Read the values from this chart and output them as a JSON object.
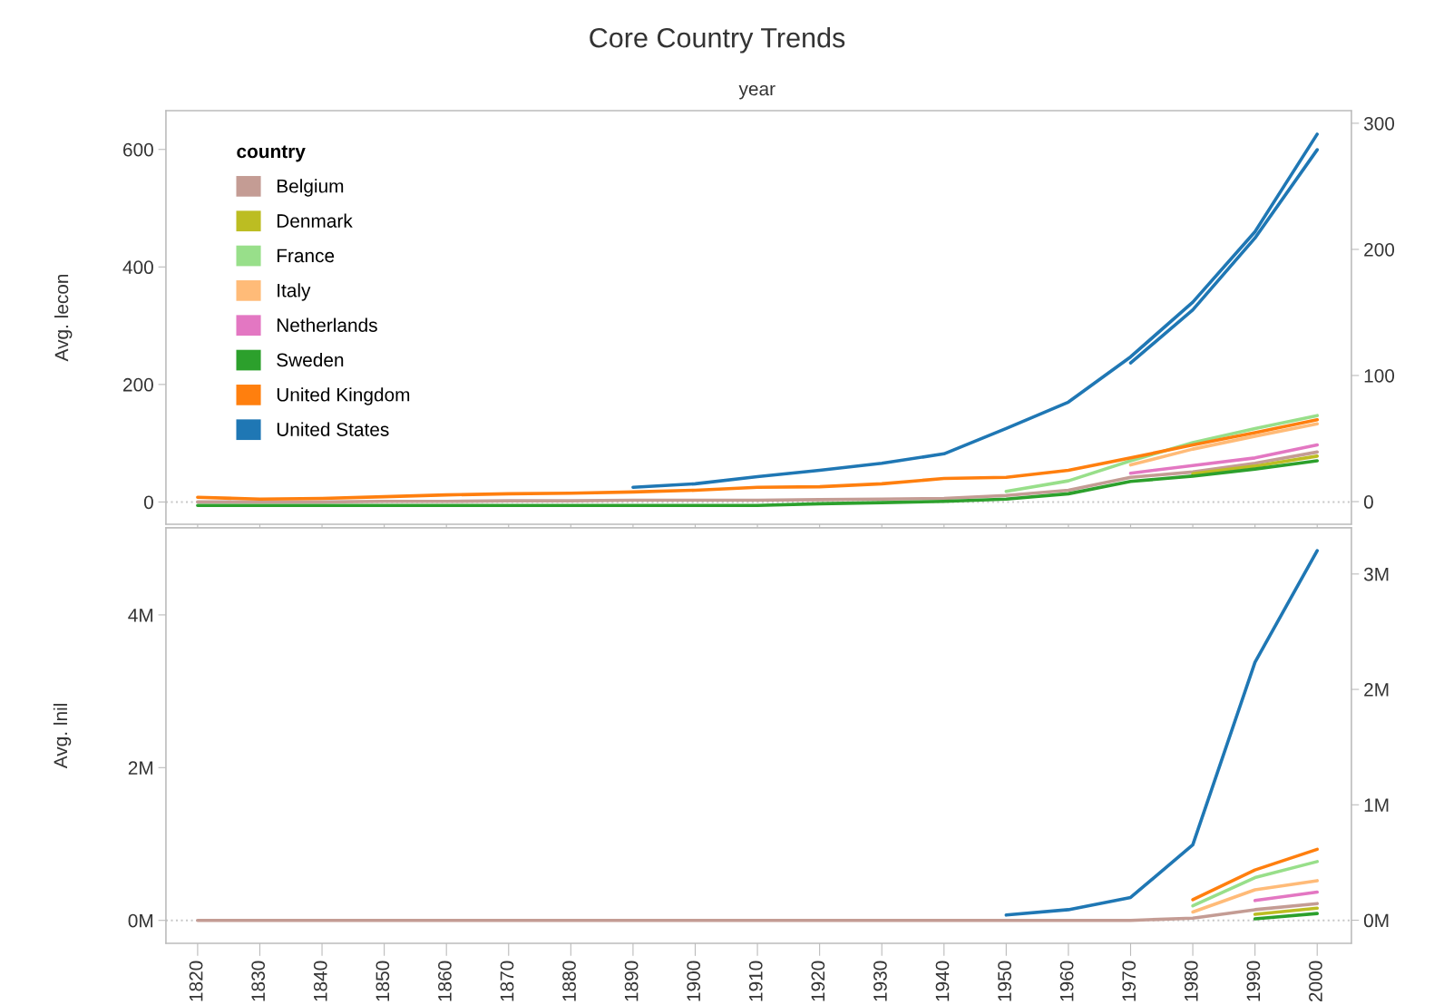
{
  "chart_data": [
    {
      "type": "line",
      "title": "Core Country Trends",
      "xlabel": "year",
      "ylabel": "Avg. lecon",
      "legend_title": "country",
      "legend": "top left",
      "tick_labels": "y",
      "grid": false,
      "categories": [
        "1820",
        "1830",
        "1840",
        "1850",
        "1860",
        "1870",
        "1880",
        "1890",
        "1900",
        "1910",
        "1920",
        "1930",
        "1940",
        "1950",
        "1960",
        "1970",
        "1980",
        "1990",
        "2000"
      ],
      "ylim": [
        -38,
        666
      ],
      "yticks": [
        0,
        200,
        400,
        600
      ],
      "y2lim": [
        -18,
        310
      ],
      "y2ticks": [
        0,
        100,
        200,
        300
      ],
      "ref_lines": [
        {
          "axis": "y",
          "value": 0,
          "color": "#c8c8c8",
          "line_style": "dotted"
        }
      ],
      "series": [
        {
          "name": "Belgium",
          "color": "#c49c94",
          "values": [
            0,
            0,
            0,
            1,
            1,
            2,
            2,
            3,
            3,
            3,
            4,
            5,
            6,
            11,
            20,
            42,
            51,
            66,
            85
          ]
        },
        {
          "name": "Denmark",
          "color": "#bcbd22",
          "values": [
            null,
            null,
            null,
            null,
            null,
            null,
            null,
            null,
            null,
            null,
            null,
            null,
            null,
            null,
            null,
            null,
            48,
            61,
            78
          ]
        },
        {
          "name": "France",
          "color": "#98df8a",
          "values": [
            null,
            null,
            null,
            null,
            null,
            null,
            null,
            null,
            null,
            null,
            null,
            null,
            null,
            18,
            36,
            70,
            101,
            125,
            147
          ]
        },
        {
          "name": "Italy",
          "color": "#ffbb78",
          "values": [
            null,
            null,
            null,
            null,
            null,
            null,
            null,
            null,
            null,
            null,
            null,
            null,
            null,
            null,
            null,
            63,
            90,
            112,
            133
          ]
        },
        {
          "name": "Netherlands",
          "color": "#e377c2",
          "values": [
            null,
            null,
            null,
            null,
            null,
            null,
            null,
            null,
            null,
            null,
            null,
            null,
            null,
            null,
            null,
            49,
            62,
            75,
            97
          ]
        },
        {
          "name": "Sweden",
          "color": "#2ca02c",
          "values": [
            -6,
            -6,
            -6,
            -6,
            -6,
            -6,
            -6,
            -6,
            -6,
            -6,
            -3,
            -1,
            1,
            5,
            14,
            35,
            44,
            56,
            70
          ]
        },
        {
          "name": "United Kingdom",
          "color": "#ff7f0e",
          "values": [
            8,
            5,
            6,
            9,
            12,
            14,
            15,
            17,
            20,
            25,
            26,
            31,
            40,
            42,
            54,
            75,
            97,
            118,
            140
          ]
        },
        {
          "name": "United States",
          "color": "#1f77b4",
          "values": [
            null,
            null,
            null,
            null,
            null,
            null,
            null,
            25,
            31,
            43,
            54,
            66,
            82,
            125,
            170,
            247,
            340,
            460,
            626
          ]
        },
        {
          "color": "#1f77b4",
          "axis": "y2",
          "values": [
            null,
            null,
            null,
            null,
            null,
            null,
            null,
            null,
            null,
            null,
            null,
            null,
            null,
            null,
            null,
            110,
            152,
            209,
            279
          ]
        }
      ]
    },
    {
      "type": "line",
      "ylabel": "Avg. lnil",
      "categories": [
        "1820",
        "1830",
        "1840",
        "1850",
        "1860",
        "1870",
        "1880",
        "1890",
        "1900",
        "1910",
        "1920",
        "1930",
        "1940",
        "1950",
        "1960",
        "1970",
        "1980",
        "1990",
        "2000"
      ],
      "ylim": [
        -0.3,
        5.14
      ],
      "yticks": [
        {
          "value": 0,
          "label": "0M"
        },
        {
          "value": 2,
          "label": "2M"
        },
        {
          "value": 4,
          "label": "4M"
        }
      ],
      "y2lim": [
        -0.2,
        3.4
      ],
      "y2ticks": [
        {
          "value": 0,
          "label": "0M"
        },
        {
          "value": 1,
          "label": "1M"
        },
        {
          "value": 2,
          "label": "2M"
        },
        {
          "value": 3,
          "label": "3M"
        }
      ],
      "grid": false,
      "ref_lines": [
        {
          "axis": "y",
          "value": 0,
          "color": "#c8c8c8",
          "line_style": "dotted"
        }
      ],
      "series": [
        {
          "color": "#c49c94",
          "values": [
            0,
            0,
            0,
            0,
            0,
            0,
            0,
            0,
            0,
            0,
            0,
            0,
            0,
            0,
            0,
            0,
            0.03,
            0.14,
            0.22
          ]
        },
        {
          "color": "#bcbd22",
          "values": [
            null,
            null,
            null,
            null,
            null,
            null,
            null,
            null,
            null,
            null,
            null,
            null,
            null,
            null,
            null,
            null,
            null,
            0.08,
            0.16
          ]
        },
        {
          "color": "#98df8a",
          "values": [
            null,
            null,
            null,
            null,
            null,
            null,
            null,
            null,
            null,
            null,
            null,
            null,
            null,
            null,
            null,
            null,
            0.19,
            0.56,
            0.77
          ]
        },
        {
          "color": "#ffbb78",
          "values": [
            null,
            null,
            null,
            null,
            null,
            null,
            null,
            null,
            null,
            null,
            null,
            null,
            null,
            null,
            null,
            null,
            0.11,
            0.4,
            0.52
          ]
        },
        {
          "color": "#e377c2",
          "values": [
            null,
            null,
            null,
            null,
            null,
            null,
            null,
            null,
            null,
            null,
            null,
            null,
            null,
            null,
            null,
            null,
            null,
            0.26,
            0.37
          ]
        },
        {
          "color": "#2ca02c",
          "values": [
            null,
            null,
            null,
            null,
            null,
            null,
            null,
            null,
            null,
            null,
            null,
            null,
            null,
            null,
            null,
            null,
            null,
            0.02,
            0.09
          ]
        },
        {
          "color": "#ff7f0e",
          "values": [
            null,
            null,
            null,
            null,
            null,
            null,
            null,
            null,
            null,
            null,
            null,
            null,
            null,
            null,
            null,
            null,
            0.27,
            0.66,
            0.93
          ]
        },
        {
          "color": "#1f77b4",
          "values": [
            null,
            null,
            null,
            null,
            null,
            null,
            null,
            null,
            null,
            null,
            null,
            null,
            null,
            0.07,
            0.14,
            0.3,
            0.99,
            3.38,
            4.84
          ]
        }
      ]
    }
  ]
}
